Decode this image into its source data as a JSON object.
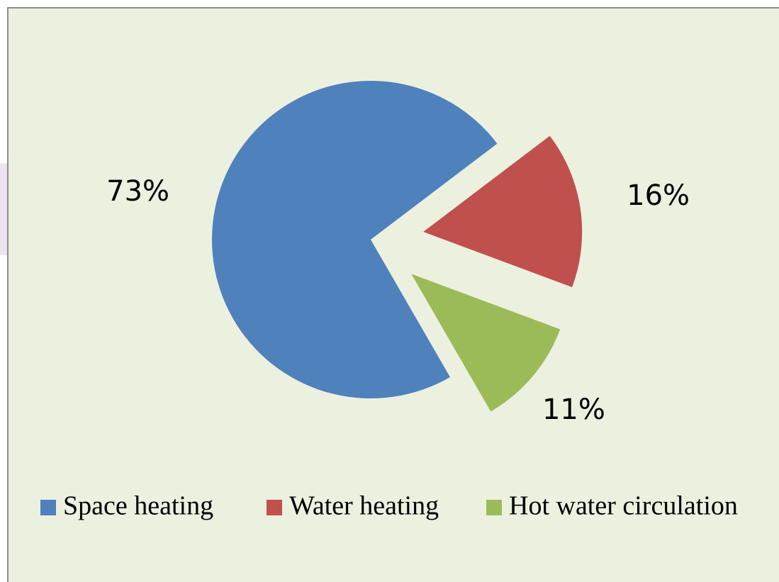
{
  "chart_data": {
    "type": "pie",
    "categories": [
      "Space heating",
      "Water heating",
      "Hot water circulation"
    ],
    "values": [
      73,
      16,
      11
    ],
    "value_labels": [
      "73%",
      "16%",
      "11%"
    ],
    "colors": [
      "#4f81bd",
      "#c0504d",
      "#9bbb59"
    ],
    "legend": "bottom"
  }
}
